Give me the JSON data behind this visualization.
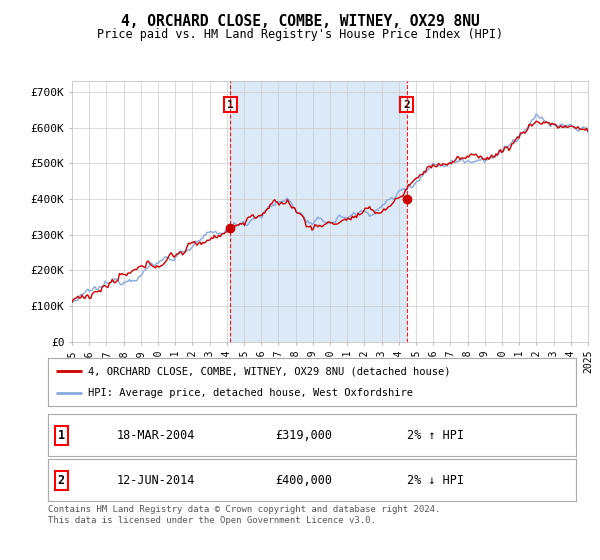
{
  "title1": "4, ORCHARD CLOSE, COMBE, WITNEY, OX29 8NU",
  "title2": "Price paid vs. HM Land Registry's House Price Index (HPI)",
  "ylabel_ticks": [
    "£0",
    "£100K",
    "£200K",
    "£300K",
    "£400K",
    "£500K",
    "£600K",
    "£700K"
  ],
  "ytick_vals": [
    0,
    100000,
    200000,
    300000,
    400000,
    500000,
    600000,
    700000
  ],
  "ylim": [
    0,
    730000
  ],
  "fig_bg": "#ffffff",
  "plot_bg": "#ffffff",
  "shade_color": "#dce9f7",
  "grid_color": "#cccccc",
  "line_color_red": "#cc0000",
  "line_color_blue": "#88aadd",
  "purchase1_date": 2004.21,
  "purchase1_price": 319000,
  "purchase1_label": "1",
  "purchase2_date": 2014.45,
  "purchase2_price": 400000,
  "purchase2_label": "2",
  "legend_line1": "4, ORCHARD CLOSE, COMBE, WITNEY, OX29 8NU (detached house)",
  "legend_line2": "HPI: Average price, detached house, West Oxfordshire",
  "table_row1_num": "1",
  "table_row1_date": "18-MAR-2004",
  "table_row1_price": "£319,000",
  "table_row1_hpi": "2% ↑ HPI",
  "table_row2_num": "2",
  "table_row2_date": "12-JUN-2014",
  "table_row2_price": "£400,000",
  "table_row2_hpi": "2% ↓ HPI",
  "footer": "Contains HM Land Registry data © Crown copyright and database right 2024.\nThis data is licensed under the Open Government Licence v3.0.",
  "xstart": 1995,
  "xend": 2025
}
